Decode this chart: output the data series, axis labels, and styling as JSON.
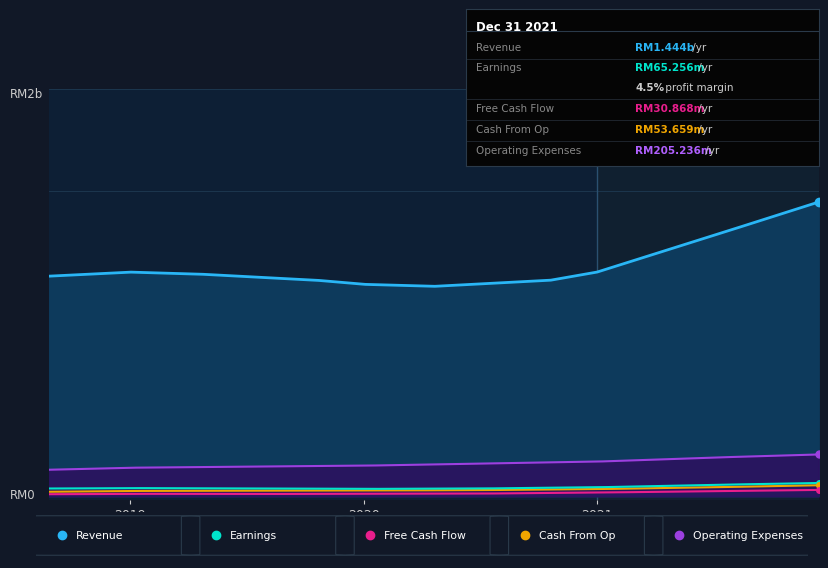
{
  "bg_color": "#111827",
  "chart_bg_left": "#0d1f35",
  "chart_bg_right": "#102030",
  "grid_color": "#1e3a52",
  "ylabel_text": "RM2b",
  "y0_text": "RM0",
  "x_ticks": [
    2019,
    2020,
    2021
  ],
  "x_min": 2018.65,
  "x_max": 2021.95,
  "y_min": -20000000,
  "y_max": 2000000000,
  "revenue_color": "#29b6f6",
  "earnings_color": "#00e5cc",
  "fcf_color": "#e91e8c",
  "cashfromop_color": "#f0a500",
  "opex_color": "#9c40e0",
  "revenue_fill": "#0d3a5c",
  "opex_fill": "#2d1060",
  "divider_x": 2021.0,
  "info_box": {
    "title": "Dec 31 2021",
    "rows": [
      {
        "label": "Revenue",
        "value": "RM1.444b",
        "unit": " /yr",
        "color": "#29b6f6"
      },
      {
        "label": "Earnings",
        "value": "RM65.256m",
        "unit": " /yr",
        "color": "#00e5cc"
      },
      {
        "label": "",
        "value": "4.5%",
        "unit": " profit margin",
        "color": "#cccccc"
      },
      {
        "label": "Free Cash Flow",
        "value": "RM30.868m",
        "unit": " /yr",
        "color": "#e91e8c"
      },
      {
        "label": "Cash From Op",
        "value": "RM53.659m",
        "unit": " /yr",
        "color": "#f0a500"
      },
      {
        "label": "Operating Expenses",
        "value": "RM205.236m",
        "unit": " /yr",
        "color": "#b060ff"
      }
    ]
  },
  "legend": [
    {
      "label": "Revenue",
      "color": "#29b6f6"
    },
    {
      "label": "Earnings",
      "color": "#00e5cc"
    },
    {
      "label": "Free Cash Flow",
      "color": "#e91e8c"
    },
    {
      "label": "Cash From Op",
      "color": "#f0a500"
    },
    {
      "label": "Operating Expenses",
      "color": "#9c40e0"
    }
  ]
}
